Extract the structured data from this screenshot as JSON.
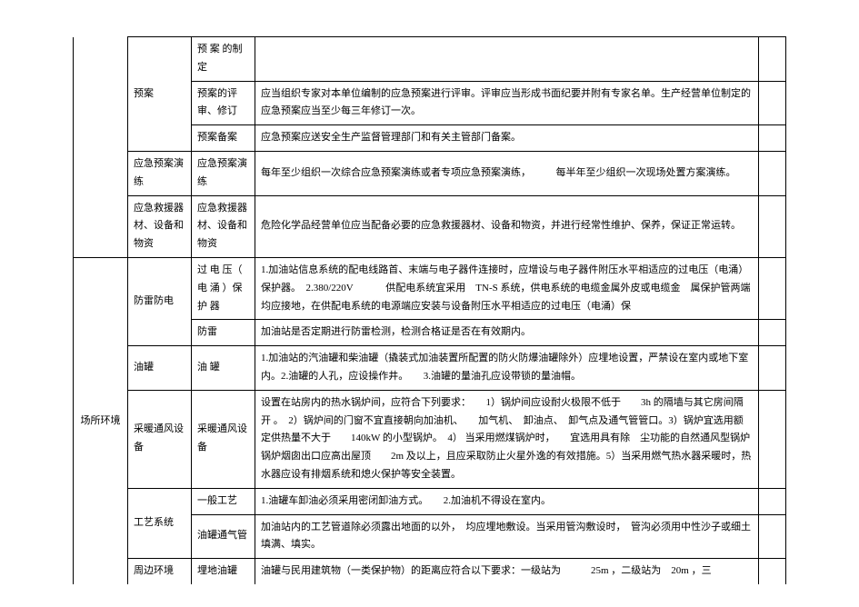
{
  "rows": [
    {
      "c1": "",
      "c2": "预案",
      "c3": "预 案 的制定",
      "c4": "",
      "c5": ""
    },
    {
      "c1": "",
      "c2": "",
      "c3": "预案的评审、修订",
      "c4": "应当组织专家对本单位编制的应急预案进行评审。评审应当形成书面纪要并附有专家名单。生产经营单位制定的应急预案应当至少每三年修订一次。",
      "c5": ""
    },
    {
      "c1": "",
      "c2": "",
      "c3": "预案备案",
      "c4": "应急预案应送安全生产监督管理部门和有关主管部门备案。",
      "c5": ""
    },
    {
      "c1": "",
      "c2": "应急预案演练",
      "c3": "应急预案演练",
      "c4": "每年至少组织一次综合应急预案演练或者专项应急预案演练，　　　每半年至少组织一次现场处置方案演练。",
      "c5": ""
    },
    {
      "c1": "",
      "c2": "应急救援器材、设备和物资",
      "c3": "应急救援器材、设备和物资",
      "c4": "危险化学品经营单位应当配备必要的应急救援器材、设备和物资，并进行经常性维护、保养，保证正常运转。",
      "c5": ""
    },
    {
      "c1": "场所环境",
      "c2": "防雷防电",
      "c3": "过 电 压（ 电 涌 ）保 护 器",
      "c4": "1.加油站信息系统的配电线路首、末端与电子器件连接时，应增设与电子器件附压水平相适应的过电压（电涌）保护器。　2.380/220V 　　　供配电系统宜采用　TN-S 系统，供电系统的电缆金属外皮或电缆金　属保护管两端均应接地，在供配电系统的电源端应安装与设备附压水平相适应的过电压（电涌）保",
      "c5": ""
    },
    {
      "c1": "",
      "c2": "",
      "c3": "防雷",
      "c4": "加油站是否定期进行防雷检测，检测合格证是否在有效期内。",
      "c5": ""
    },
    {
      "c1": "",
      "c2": "油罐",
      "c3": "油 罐",
      "c4": "1.加油站的汽油罐和柴油罐（撬装式加油装置所配置的防火防爆油罐除外）应埋地设置，严禁设在室内或地下室内。2.油罐的人孔，应设操作井。　　3.油罐的量油孔应设带锁的量油帽。",
      "c5": ""
    },
    {
      "c1": "",
      "c2": "采暖通风设备",
      "c3": "采暖通风设备",
      "c4": "设置在站房内的热水锅炉间，应符合下列要求：　　1）锅炉间应设耐火极限不低于　　3h 的隔墙与其它房间隔 开 。　2）锅炉间的门窗不宜直接朝向加油机、　　加气机、　卸油点、　卸气点及通气管管口。3）锅炉宜选用额定供热量不大于　　140kW 的小型锅炉。　4） 当采用燃煤锅炉时，　　宜选用具有除　尘功能的自然通风型锅炉　　锅炉烟囱出口应高出屋顶　　2m 及以上，且应采取防止火星外逸的有效措施。5）当采用燃气热水器采暖时，热水器应设有排烟系统和熄火保护等安全装置。",
      "c5": ""
    },
    {
      "c1": "",
      "c2": "工艺系统",
      "c3": "一般工艺",
      "c4": "1.油罐车卸油必须采用密闭卸油方式。　　2.加油机不得设在室内。",
      "c5": ""
    },
    {
      "c1": "",
      "c2": "",
      "c3": "油罐通气管",
      "c4": "加油站内的工艺管道除必须露出地面的以外，　均应埋地敷设。当采用管沟敷设时，　管沟必须用中性沙子或细土填满、填实。",
      "c5": ""
    },
    {
      "c1": "",
      "c2": "周边环境",
      "c3": "埋地油罐",
      "c4": "油罐与民用建筑物（一类保护物）的距离应符合以下要求：一级站为　　　25m ，二级站为　20m ，三",
      "c5": ""
    }
  ],
  "spans": {
    "r0": {
      "c1Border": "noborder-top noborder-bottom",
      "c2rows": 3
    },
    "r5": {
      "c1rows": 7,
      "c2rows": 2
    },
    "r9": {
      "c2rows": 2
    }
  }
}
